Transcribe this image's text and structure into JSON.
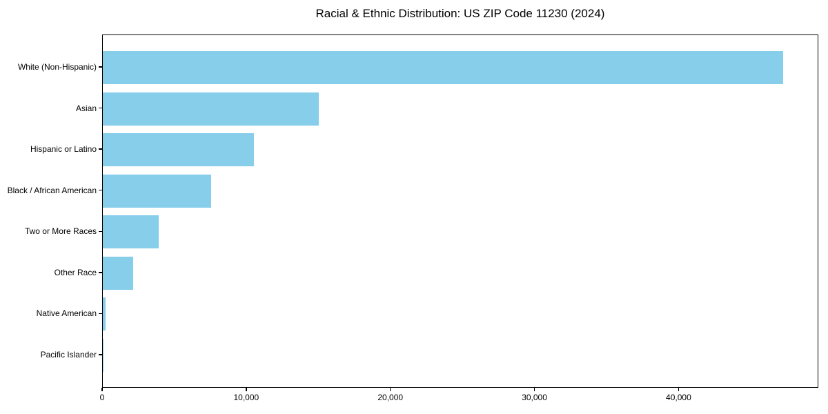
{
  "chart_data": {
    "type": "bar",
    "orientation": "horizontal",
    "title": "Racial & Ethnic Distribution: US ZIP Code 11230 (2024)",
    "categories": [
      "White (Non-Hispanic)",
      "Asian",
      "Hispanic or Latino",
      "Black / African American",
      "Two or More Races",
      "Other Race",
      "Native American",
      "Pacific Islander"
    ],
    "values": [
      47200,
      15000,
      10500,
      7500,
      3900,
      2100,
      200,
      30
    ],
    "bar_color": "#87CEEB",
    "xlabel": "",
    "ylabel": "",
    "xlim": [
      0,
      49700
    ],
    "xticks": [
      0,
      10000,
      20000,
      30000,
      40000
    ],
    "xtick_labels": [
      "0",
      "10,000",
      "20,000",
      "30,000",
      "40,000"
    ],
    "grid": false,
    "legend": "none",
    "spine_color": "#000000",
    "text_color": "#000000"
  }
}
